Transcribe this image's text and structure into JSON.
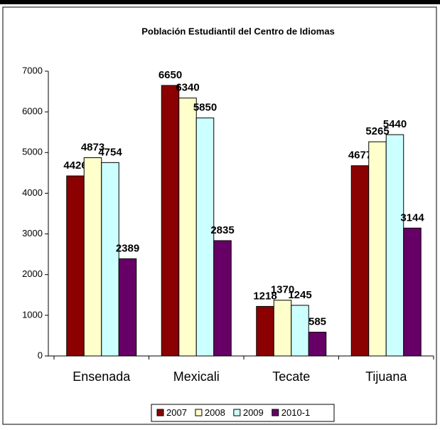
{
  "chart_data": {
    "type": "bar",
    "title": "Población Estudiantil del Centro de Idiomas",
    "categories": [
      "Ensenada",
      "Mexicali",
      "Tecate",
      "Tijuana"
    ],
    "series": [
      {
        "name": "2007",
        "color": "#8b0000",
        "values": [
          4426,
          6650,
          1218,
          4677
        ]
      },
      {
        "name": "2008",
        "color": "#ffffcc",
        "values": [
          4873,
          6340,
          1370,
          5265
        ]
      },
      {
        "name": "2009",
        "color": "#ccffff",
        "values": [
          4754,
          5850,
          1245,
          5440
        ]
      },
      {
        "name": "2010-1",
        "color": "#660066",
        "values": [
          2389,
          2835,
          585,
          3144
        ]
      }
    ],
    "ylim": [
      0,
      7000
    ],
    "yticks": [
      0,
      1000,
      2000,
      3000,
      4000,
      5000,
      6000,
      7000
    ],
    "legend": "bottom"
  }
}
